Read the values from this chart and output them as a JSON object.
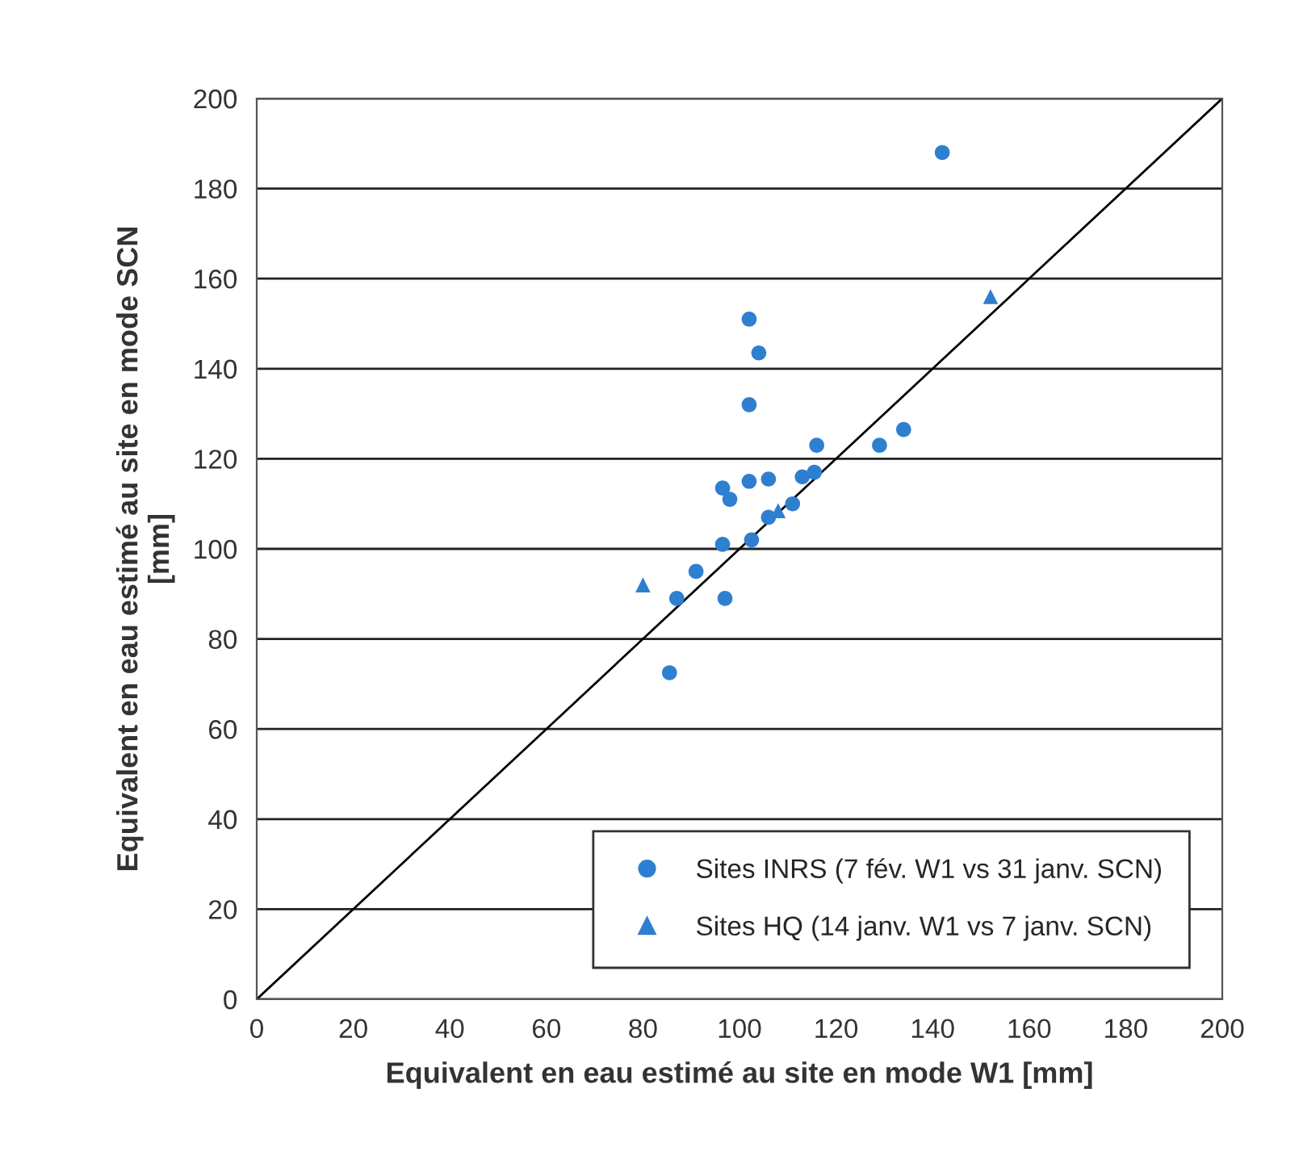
{
  "chart_data": {
    "type": "scatter",
    "xlabel": "Equivalent en eau estimé au site en mode W1 [mm]",
    "ylabel": "Equivalent en eau estimé au site en mode SCN\n[mm]",
    "series": [
      {
        "name": "Sites INRS (7 fév. W1 vs 31 janv. SCN)",
        "color": "#2f7fd0",
        "marker": "circle",
        "x": [
          142,
          102,
          104,
          102,
          134,
          129,
          116,
          96.5,
          98,
          102,
          106,
          113,
          115.5,
          111,
          106,
          102.5,
          96.5,
          91,
          87,
          97,
          85.5
        ],
        "values": [
          188,
          151,
          143.5,
          132,
          126.5,
          123,
          123,
          113.5,
          111,
          115,
          115.5,
          116,
          117,
          110,
          107,
          102,
          101,
          95,
          89,
          89,
          72.5
        ]
      },
      {
        "name": "Sites HQ (14 janv. W1 vs 7 janv. SCN)",
        "color": "#2f7fd0",
        "marker": "triangle",
        "x": [
          80,
          108,
          152
        ],
        "values": [
          92,
          108.5,
          156
        ]
      },
      {
        "type": "line",
        "color": "#000000",
        "marker": "none",
        "x": [
          0,
          200
        ],
        "values": [
          0,
          200
        ]
      }
    ],
    "xlim": [
      0,
      200
    ],
    "ylim": [
      0,
      200
    ],
    "xticks": [
      0,
      20,
      40,
      60,
      80,
      100,
      120,
      140,
      160,
      180,
      200
    ],
    "yticks": [
      0,
      20,
      40,
      60,
      80,
      100,
      120,
      140,
      160,
      180,
      200
    ],
    "grid": "y",
    "legend": "bottom right"
  }
}
